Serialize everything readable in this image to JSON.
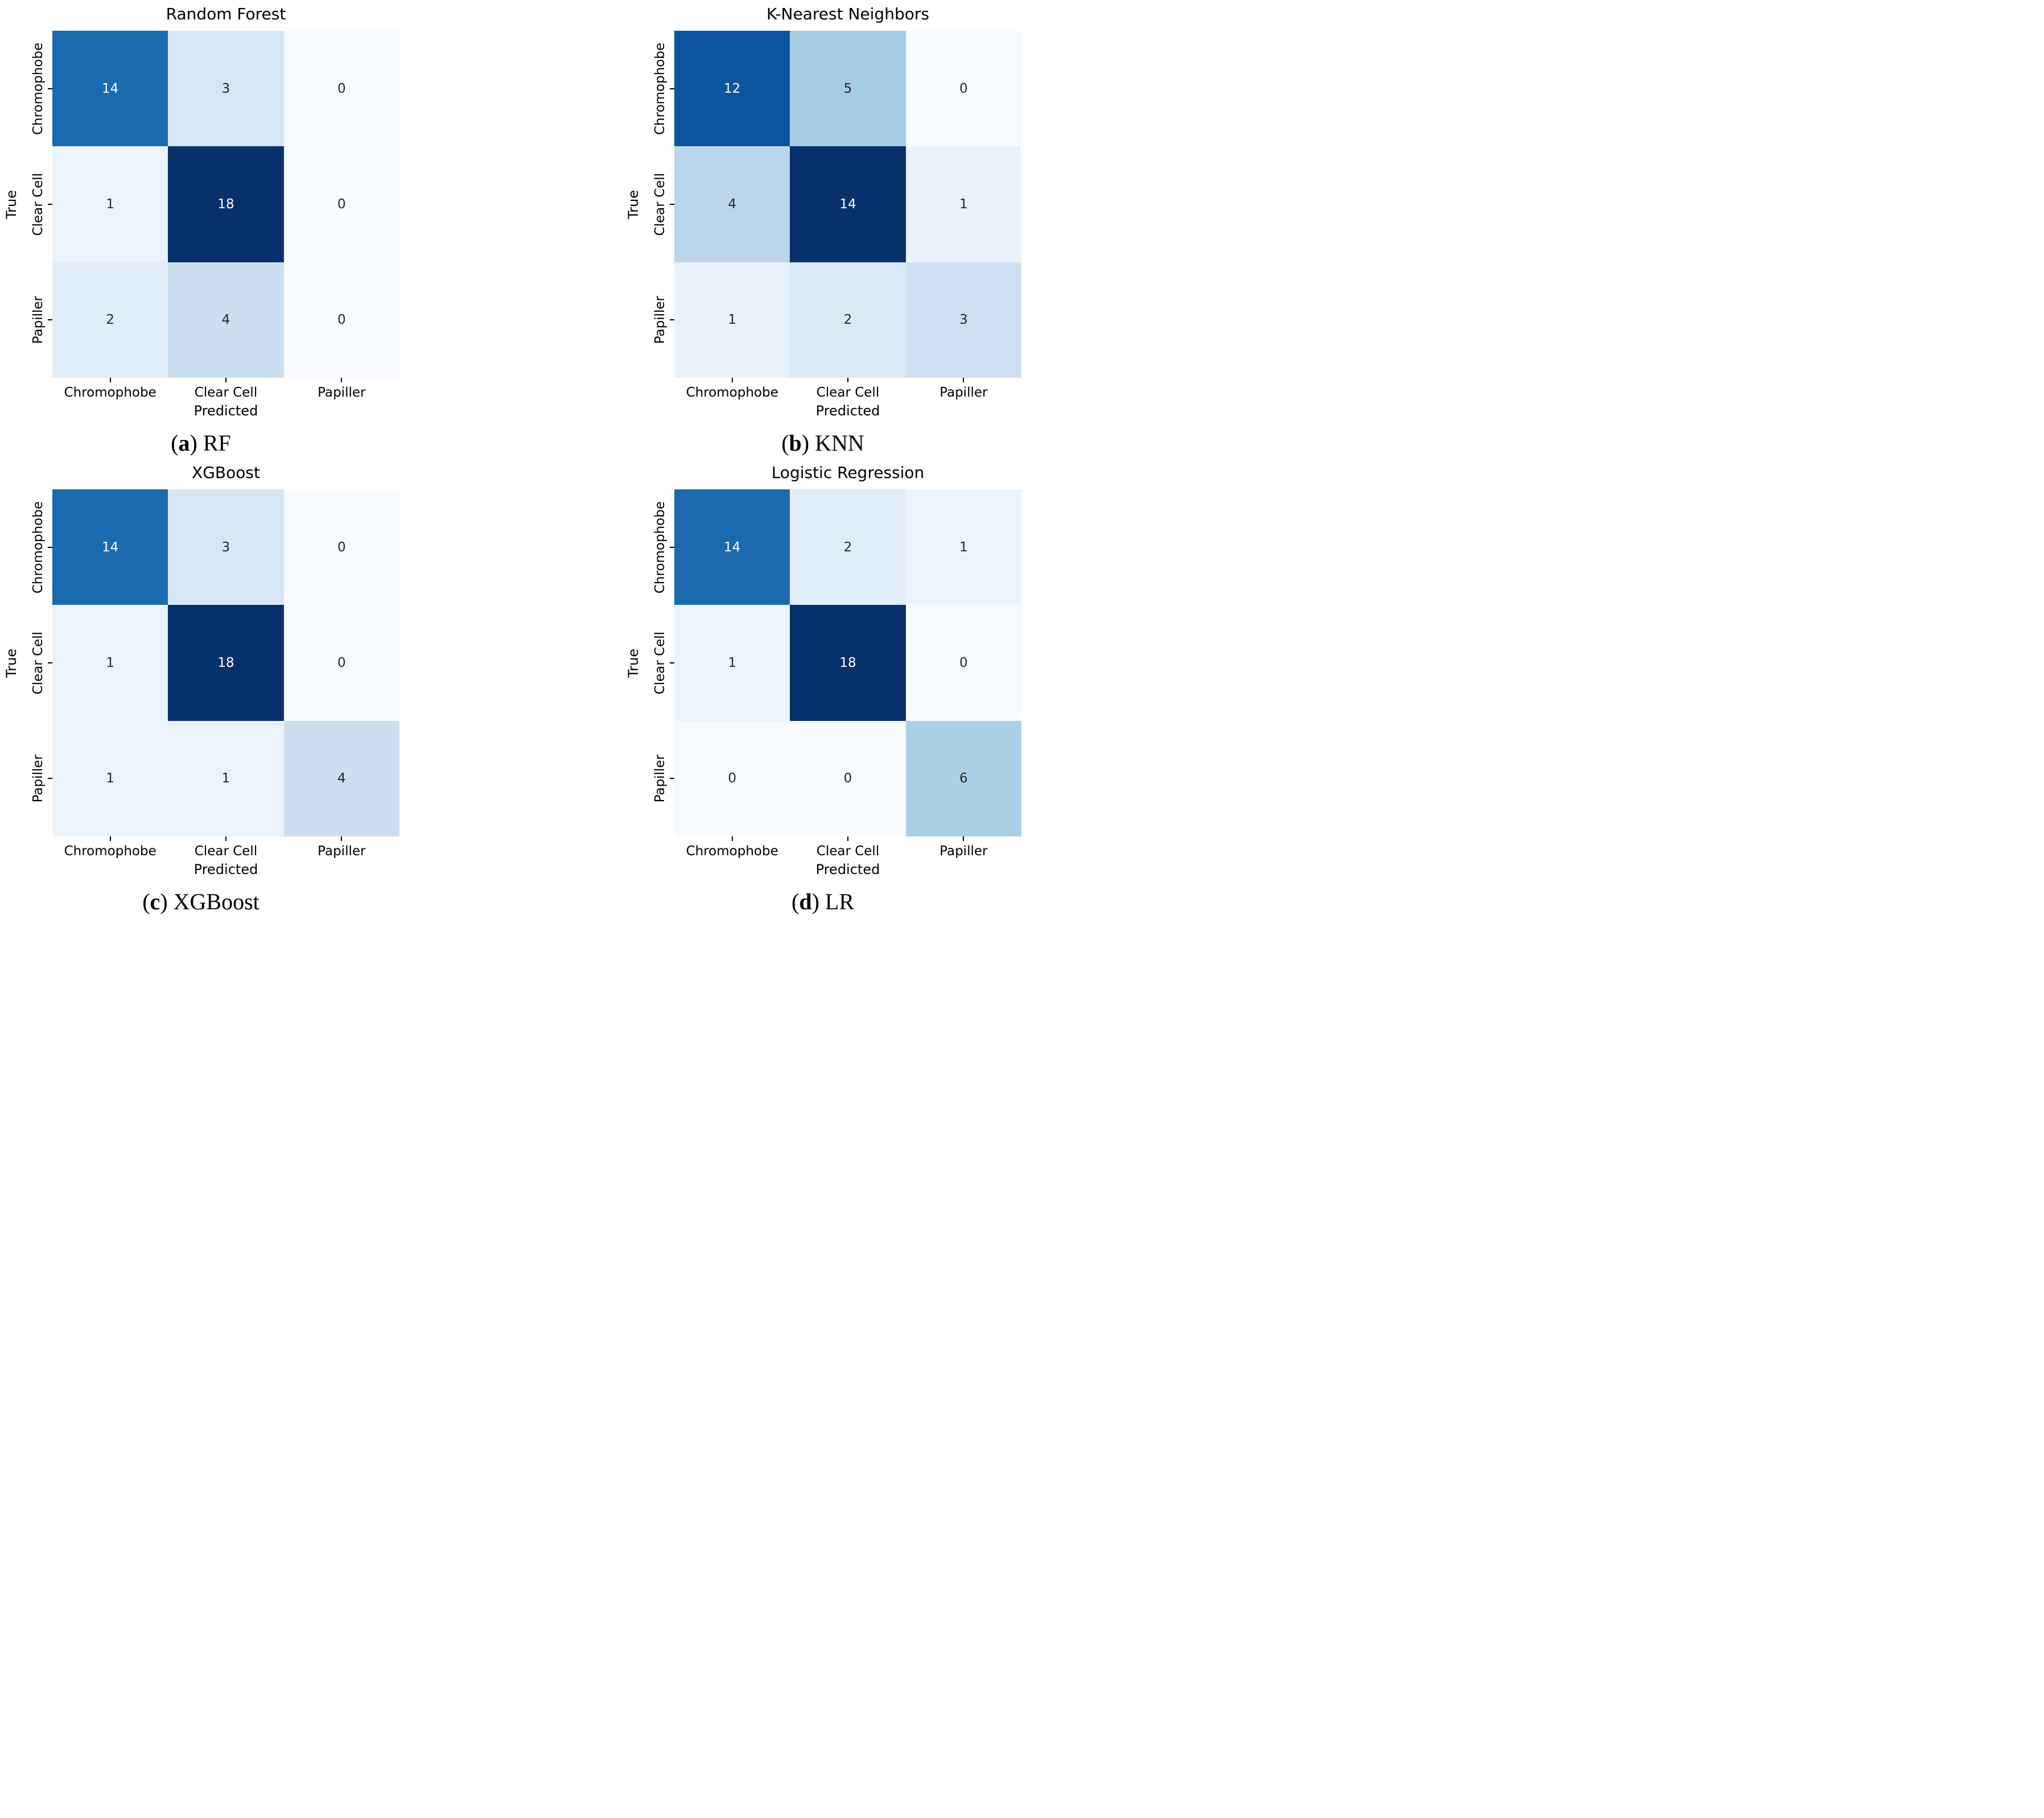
{
  "figure": {
    "xlabel": "Predicted",
    "ylabel": "True",
    "categories": [
      "Chromophobe",
      "Clear Cell",
      "Papiller"
    ],
    "colormap": {
      "name": "Blues",
      "stops": [
        "#f7fbff",
        "#deebf7",
        "#c6dbef",
        "#9ecae1",
        "#6baed6",
        "#4292c6",
        "#2171b5",
        "#08519c",
        "#08306b"
      ]
    },
    "annotation_colors": {
      "dark": "#262626",
      "light": "#ffffff"
    }
  },
  "chart_data": [
    {
      "type": "heatmap",
      "title": "Random Forest",
      "caption": {
        "open": "(",
        "letter": "a",
        "close": ")",
        "text": "RF"
      },
      "xlabel": "Predicted",
      "ylabel": "True",
      "x_categories": [
        "Chromophobe",
        "Clear Cell",
        "Papiller"
      ],
      "y_categories": [
        "Chromophobe",
        "Clear Cell",
        "Papiller"
      ],
      "values": [
        [
          14,
          3,
          0
        ],
        [
          1,
          18,
          0
        ],
        [
          2,
          4,
          0
        ]
      ],
      "vmin": 0,
      "vmax": 18,
      "colormap": "Blues",
      "legend": "off",
      "grid": "off"
    },
    {
      "type": "heatmap",
      "title": "K-Nearest Neighbors",
      "caption": {
        "open": "(",
        "letter": "b",
        "close": ")",
        "text": "KNN"
      },
      "xlabel": "Predicted",
      "ylabel": "True",
      "x_categories": [
        "Chromophobe",
        "Clear Cell",
        "Papiller"
      ],
      "y_categories": [
        "Chromophobe",
        "Clear Cell",
        "Papiller"
      ],
      "values": [
        [
          12,
          5,
          0
        ],
        [
          4,
          14,
          1
        ],
        [
          1,
          2,
          3
        ]
      ],
      "vmin": 0,
      "vmax": 14,
      "colormap": "Blues",
      "legend": "off",
      "grid": "off"
    },
    {
      "type": "heatmap",
      "title": "XGBoost",
      "caption": {
        "open": "(",
        "letter": "c",
        "close": ")",
        "text": "XGBoost"
      },
      "xlabel": "Predicted",
      "ylabel": "True",
      "x_categories": [
        "Chromophobe",
        "Clear Cell",
        "Papiller"
      ],
      "y_categories": [
        "Chromophobe",
        "Clear Cell",
        "Papiller"
      ],
      "values": [
        [
          14,
          3,
          0
        ],
        [
          1,
          18,
          0
        ],
        [
          1,
          1,
          4
        ]
      ],
      "vmin": 0,
      "vmax": 18,
      "colormap": "Blues",
      "legend": "off",
      "grid": "off"
    },
    {
      "type": "heatmap",
      "title": "Logistic Regression",
      "caption": {
        "open": "(",
        "letter": "d",
        "close": ")",
        "text": "LR"
      },
      "xlabel": "Predicted",
      "ylabel": "True",
      "x_categories": [
        "Chromophobe",
        "Clear Cell",
        "Papiller"
      ],
      "y_categories": [
        "Chromophobe",
        "Clear Cell",
        "Papiller"
      ],
      "values": [
        [
          14,
          2,
          1
        ],
        [
          1,
          18,
          0
        ],
        [
          0,
          0,
          6
        ]
      ],
      "vmin": 0,
      "vmax": 18,
      "colormap": "Blues",
      "legend": "off",
      "grid": "off"
    }
  ]
}
